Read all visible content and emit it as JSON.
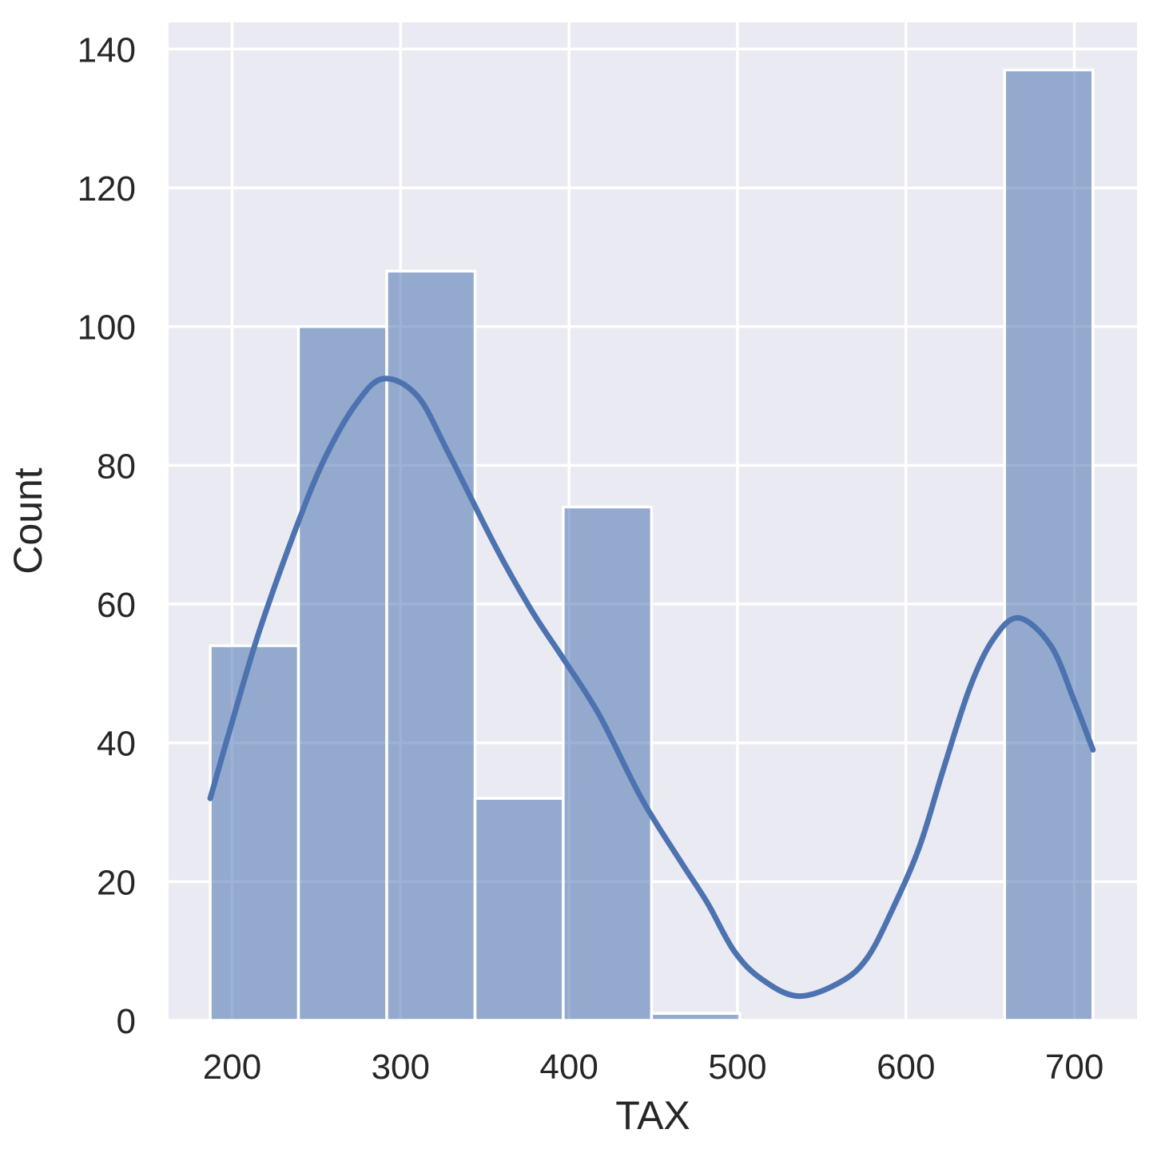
{
  "chart_data": {
    "type": "bar",
    "subtype": "histogram-with-kde",
    "title": "",
    "xlabel": "TAX",
    "ylabel": "Count",
    "xlim": [
      162.3,
      737.2
    ],
    "ylim": [
      0,
      143.85
    ],
    "grid": true,
    "legend": false,
    "x_ticks": [
      200,
      300,
      400,
      500,
      600,
      700
    ],
    "y_ticks": [
      0,
      20,
      40,
      60,
      80,
      100,
      120,
      140
    ],
    "bins": {
      "edges": [
        187.0,
        239.4,
        291.8,
        344.2,
        396.6,
        449.0,
        501.4,
        553.8,
        606.2,
        658.6,
        711.0
      ],
      "counts": [
        54,
        100,
        108,
        32,
        74,
        1,
        0,
        0,
        0,
        137
      ]
    },
    "kde_points": [
      [
        187,
        32
      ],
      [
        200,
        43
      ],
      [
        216,
        56
      ],
      [
        238,
        71
      ],
      [
        255,
        81
      ],
      [
        274,
        89
      ],
      [
        290,
        92.5
      ],
      [
        310,
        90
      ],
      [
        328,
        82
      ],
      [
        357,
        68
      ],
      [
        378,
        59
      ],
      [
        397,
        52
      ],
      [
        418,
        44
      ],
      [
        443,
        32
      ],
      [
        466,
        23
      ],
      [
        482,
        17
      ],
      [
        498,
        10
      ],
      [
        514,
        6
      ],
      [
        536,
        3.5
      ],
      [
        561,
        5.5
      ],
      [
        577,
        9
      ],
      [
        592,
        16
      ],
      [
        608,
        25
      ],
      [
        622,
        36
      ],
      [
        638,
        48
      ],
      [
        652,
        55
      ],
      [
        667,
        58
      ],
      [
        686,
        54
      ],
      [
        700,
        46
      ],
      [
        711,
        39
      ]
    ],
    "colors": {
      "figure_bg": "#ffffff",
      "axes_bg": "#eaeaf2",
      "grid": "#ffffff",
      "bar_fill": "#4c72b0",
      "bar_fill_opacity": 0.55,
      "bar_edge": "#ffffff",
      "kde_line": "#4c72b0",
      "text": "#262626"
    }
  }
}
